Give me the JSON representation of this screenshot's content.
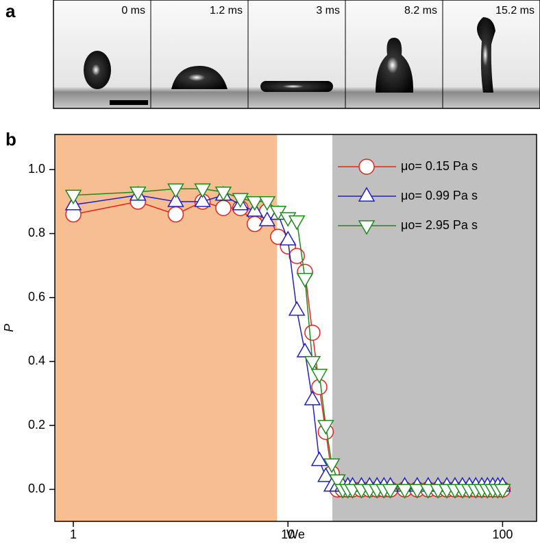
{
  "panel_a": {
    "label": "a",
    "frames": [
      "0 ms",
      "1.2 ms",
      "3 ms",
      "8.2 ms",
      "15.2 ms"
    ]
  },
  "chart_data": {
    "type": "line",
    "panel_label": "b",
    "x_label": "We",
    "y_label": "P",
    "xscale": "log",
    "xlim": [
      0.82,
      144
    ],
    "ylim": [
      -0.1,
      1.11
    ],
    "xticks": [
      1,
      10,
      100
    ],
    "yticks": [
      {
        "value": 0,
        "label": "0.0"
      },
      0.2,
      0.4,
      0.6,
      0.8,
      {
        "value": 1,
        "label": "1.0"
      }
    ],
    "shaded_regions": [
      {
        "xmin": 0.82,
        "xmax": 8.9,
        "color": "#f7be91"
      },
      {
        "xmin": 16.1,
        "xmax": 144,
        "color": "#c0c0c0"
      }
    ],
    "legend": "upper right",
    "x": [
      1,
      2,
      3,
      4,
      5,
      6,
      7,
      8,
      9,
      10,
      11,
      12,
      13,
      14,
      15,
      16,
      17,
      18,
      19,
      20,
      22,
      24,
      26,
      28,
      30,
      35,
      40,
      45,
      50,
      55,
      60,
      65,
      70,
      75,
      80,
      85,
      90,
      95,
      100
    ],
    "series": [
      {
        "name": "μo= 0.15 Pa s",
        "color": "#e8211c",
        "marker": "circle",
        "values": [
          0.86,
          0.9,
          0.86,
          0.9,
          0.88,
          0.88,
          0.83,
          0.87,
          0.79,
          0.76,
          0.73,
          0.68,
          0.49,
          0.32,
          0.18,
          0.05,
          0,
          0,
          0,
          0,
          0,
          0,
          0,
          0,
          0,
          0,
          0,
          0,
          0,
          0,
          0,
          0,
          0,
          0,
          0,
          0,
          0,
          0,
          0
        ]
      },
      {
        "name": "μo= 0.99 Pa s",
        "color": "#1e1ec8",
        "marker": "triangle-up",
        "values": [
          0.89,
          0.92,
          0.9,
          0.9,
          0.92,
          0.89,
          0.87,
          0.84,
          0.86,
          0.78,
          0.56,
          0.43,
          0.28,
          0.09,
          0.04,
          0.01,
          0.01,
          0.01,
          0.01,
          0.01,
          0.01,
          0.01,
          0.01,
          0.01,
          0.01,
          0.01,
          0.01,
          0.01,
          0.01,
          0.01,
          0.01,
          0.01,
          0.01,
          0.01,
          0.01,
          0.01,
          0.01,
          0.01,
          0.01
        ]
      },
      {
        "name": "μo= 2.95 Pa s",
        "color": "#1a8a1a",
        "marker": "triangle-down",
        "values": [
          0.92,
          0.93,
          0.94,
          0.94,
          0.93,
          0.91,
          0.9,
          0.9,
          0.87,
          0.85,
          0.84,
          0.66,
          0.4,
          0.36,
          0.2,
          0.08,
          0.03,
          0,
          0,
          0,
          0,
          0,
          0,
          0,
          0,
          0,
          0,
          0,
          0,
          0,
          0,
          0,
          0,
          0,
          0,
          0,
          0,
          0,
          0
        ]
      }
    ]
  }
}
